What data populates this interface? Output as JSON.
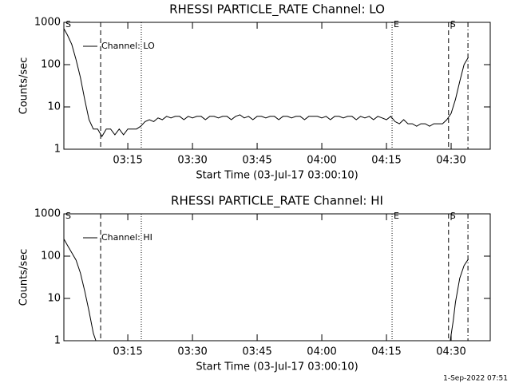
{
  "chart_data": [
    {
      "type": "line",
      "title": "RHESSI PARTICLE_RATE Channel: LO",
      "x_label": "Start Time (03-Jul-17 03:00:10)",
      "y_label": "Counts/sec",
      "log_y": true,
      "legend": "upper left",
      "xlim": [
        0.17,
        99.07
      ],
      "xticks": [
        {
          "value": 15,
          "label": "03:15"
        },
        {
          "value": 30,
          "label": "03:30"
        },
        {
          "value": 45,
          "label": "03:45"
        },
        {
          "value": 60,
          "label": "04:00"
        },
        {
          "value": 75,
          "label": "04:15"
        },
        {
          "value": 90,
          "label": "04:30"
        }
      ],
      "ylim": [
        1,
        1000
      ],
      "yticks": [
        1,
        10,
        100,
        1000
      ],
      "vlines": [
        {
          "x": 8.7,
          "style": "dashed"
        },
        {
          "x": 18.13,
          "style": "dotted"
        },
        {
          "x": 76.3,
          "style": "dotted"
        },
        {
          "x": 89.4,
          "style": "dashed"
        },
        {
          "x": 93.9,
          "style": "dashdot"
        }
      ],
      "annotations": [
        {
          "text": "S",
          "x": 0.17
        },
        {
          "text": "E",
          "x": 76.3
        },
        {
          "text": "S",
          "x": 89.4
        }
      ],
      "x": [
        0.2,
        1,
        2,
        3,
        4,
        5,
        6,
        7,
        8,
        9,
        10,
        11,
        12,
        13,
        14,
        15,
        16,
        17,
        18,
        19,
        20,
        21,
        22,
        23,
        24,
        25,
        26,
        27,
        28,
        29,
        30,
        31,
        32,
        33,
        34,
        35,
        36,
        37,
        38,
        39,
        40,
        41,
        42,
        43,
        44,
        45,
        46,
        47,
        48,
        49,
        50,
        51,
        52,
        53,
        54,
        55,
        56,
        57,
        58,
        59,
        60,
        61,
        62,
        63,
        64,
        65,
        66,
        67,
        68,
        69,
        70,
        71,
        72,
        73,
        74,
        75,
        76,
        77,
        78,
        79,
        80,
        81,
        82,
        83,
        84,
        85,
        86,
        87,
        88,
        89,
        90,
        91,
        92,
        93,
        94
      ],
      "series": [
        {
          "name": "Channel: LO",
          "color": "#000000",
          "values": [
            700,
            500,
            300,
            130,
            50,
            15,
            5,
            3,
            3,
            2,
            3,
            3,
            2.2,
            3,
            2.2,
            3,
            3,
            3,
            3.5,
            4.5,
            5,
            4.5,
            5.5,
            5,
            6,
            5.5,
            6,
            6,
            5,
            6,
            5.5,
            6,
            6,
            5,
            6,
            6,
            5.5,
            6,
            6,
            5,
            6,
            6.5,
            5.5,
            6,
            5,
            6,
            6,
            5.5,
            6,
            6,
            5,
            6,
            6,
            5.5,
            6,
            6,
            5,
            6,
            6,
            6,
            5.5,
            6,
            5,
            6,
            6,
            5.5,
            6,
            6,
            5,
            6,
            5.5,
            6,
            5,
            6,
            5.5,
            5,
            6,
            4.5,
            4,
            5,
            4,
            4,
            3.5,
            4,
            4,
            3.5,
            4,
            4,
            4,
            5,
            7,
            15,
            40,
            100,
            150
          ]
        }
      ]
    },
    {
      "type": "line",
      "title": "RHESSI PARTICLE_RATE Channel: HI",
      "x_label": "Start Time (03-Jul-17 03:00:10)",
      "y_label": "Counts/sec",
      "log_y": true,
      "legend": "upper left",
      "xlim": [
        0.17,
        99.07
      ],
      "xticks": [
        {
          "value": 15,
          "label": "03:15"
        },
        {
          "value": 30,
          "label": "03:30"
        },
        {
          "value": 45,
          "label": "03:45"
        },
        {
          "value": 60,
          "label": "04:00"
        },
        {
          "value": 75,
          "label": "04:15"
        },
        {
          "value": 90,
          "label": "04:30"
        }
      ],
      "ylim": [
        1,
        1000
      ],
      "yticks": [
        1,
        10,
        100,
        1000
      ],
      "vlines": [
        {
          "x": 8.7,
          "style": "dashed"
        },
        {
          "x": 18.13,
          "style": "dotted"
        },
        {
          "x": 76.3,
          "style": "dotted"
        },
        {
          "x": 89.4,
          "style": "dashed"
        },
        {
          "x": 93.9,
          "style": "dashdot"
        }
      ],
      "annotations": [
        {
          "text": "S",
          "x": 0.17
        },
        {
          "text": "E",
          "x": 76.3
        },
        {
          "text": "S",
          "x": 89.4
        }
      ],
      "x": [
        0.2,
        1,
        2,
        3,
        4,
        5,
        6,
        7,
        7.6,
        89.8,
        90.5,
        91,
        92,
        93,
        94
      ],
      "series": [
        {
          "name": "Channel: HI",
          "color": "#000000",
          "values": [
            250,
            180,
            120,
            80,
            40,
            15,
            5,
            1.5,
            1,
            1,
            3,
            8,
            30,
            60,
            85
          ]
        }
      ]
    }
  ],
  "footer": "1-Sep-2022 07:51"
}
